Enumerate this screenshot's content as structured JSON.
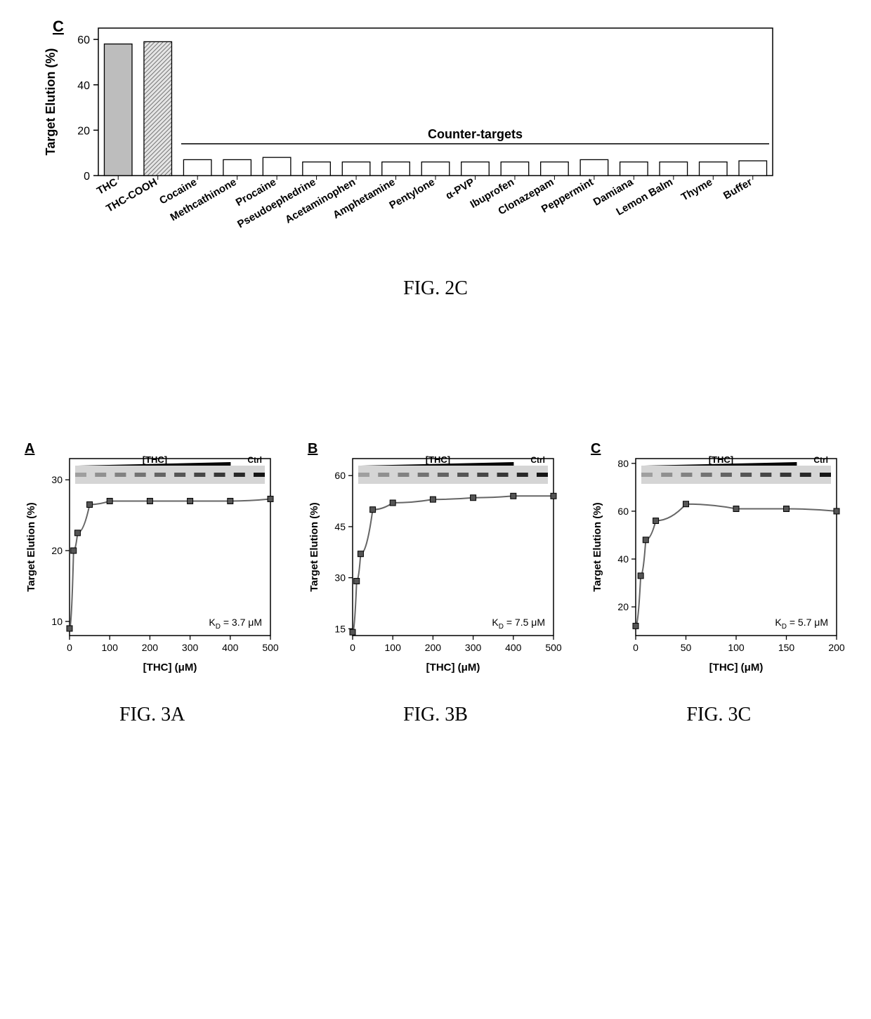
{
  "fig2c": {
    "type": "bar",
    "panel_label": "C",
    "ylabel": "Target Elution (%)",
    "ylim": [
      0,
      65
    ],
    "ytick_step": 20,
    "yticks": [
      0,
      20,
      40,
      60
    ],
    "counter_label": "Counter-targets",
    "categories": [
      "THC",
      "THC-COOH",
      "Cocaine",
      "Methcathinone",
      "Procaine",
      "Pseudoephedrine",
      "Acetaminophen",
      "Amphetamine",
      "Pentylone",
      "α-PVP",
      "Ibuprofen",
      "Clonazepam",
      "Peppermint",
      "Damiana",
      "Lemon Balm",
      "Thyme",
      "Buffer"
    ],
    "values": [
      58,
      59,
      7,
      7,
      8,
      6,
      6,
      6,
      6,
      6,
      6,
      6,
      7,
      6,
      6,
      6,
      6.5
    ],
    "bar_colors": [
      "#bdbdbd",
      "hatch",
      "#ffffff",
      "#ffffff",
      "#ffffff",
      "#ffffff",
      "#ffffff",
      "#ffffff",
      "#ffffff",
      "#ffffff",
      "#ffffff",
      "#ffffff",
      "#ffffff",
      "#ffffff",
      "#ffffff",
      "#ffffff",
      "#ffffff"
    ],
    "border_color": "#000000",
    "background_color": "#ffffff",
    "label_fontsize": 18,
    "tick_fontsize": 16,
    "cat_fontsize": 15,
    "bar_width": 0.7
  },
  "fig3a": {
    "panel_label": "A",
    "ylabel": "Target Elution (%)",
    "xlabel": "[THC] (μM)",
    "xlim": [
      0,
      500
    ],
    "xticks": [
      0,
      100,
      200,
      300,
      400,
      500
    ],
    "ylim": [
      8,
      33
    ],
    "yticks": [
      10,
      20,
      30
    ],
    "kd_label": "K",
    "kd_sub": "D",
    "kd_value": " = 3.7 μM",
    "points_x": [
      0,
      10,
      20,
      50,
      100,
      200,
      300,
      400,
      500
    ],
    "points_y": [
      9,
      20,
      22.5,
      26.5,
      27,
      27,
      27,
      27,
      27.3
    ],
    "inset_label": "[THC]",
    "inset_ctrl": "Ctrl"
  },
  "fig3b": {
    "panel_label": "B",
    "ylabel": "Target Elution (%)",
    "xlabel": "[THC] (μM)",
    "xlim": [
      0,
      500
    ],
    "xticks": [
      0,
      100,
      200,
      300,
      400,
      500
    ],
    "ylim": [
      13,
      65
    ],
    "yticks": [
      15,
      30,
      45,
      60
    ],
    "kd_label": "K",
    "kd_sub": "D",
    "kd_value": " = 7.5 μM",
    "points_x": [
      0,
      10,
      20,
      50,
      100,
      200,
      300,
      400,
      500
    ],
    "points_y": [
      14,
      29,
      37,
      50,
      52,
      53,
      53.5,
      54,
      54
    ],
    "inset_label": "[THC]",
    "inset_ctrl": "Ctrl"
  },
  "fig3c": {
    "panel_label": "C",
    "ylabel": "Target Elution (%)",
    "xlabel": "[THC] (μM)",
    "xlim": [
      0,
      200
    ],
    "xticks": [
      0,
      50,
      100,
      150,
      200
    ],
    "ylim": [
      8,
      82
    ],
    "yticks": [
      20,
      40,
      60,
      80
    ],
    "kd_label": "K",
    "kd_sub": "D",
    "kd_value": " = 5.7 μM",
    "points_x": [
      0,
      5,
      10,
      20,
      50,
      100,
      150,
      200
    ],
    "points_y": [
      12,
      33,
      48,
      56,
      63,
      61,
      61,
      60
    ],
    "inset_label": "[THC]",
    "inset_ctrl": "Ctrl"
  },
  "captions": {
    "fig2c": "FIG. 2C",
    "fig3a": "FIG. 3A",
    "fig3b": "FIG. 3B",
    "fig3c": "FIG. 3C"
  },
  "colors": {
    "axis": "#000000",
    "curve": "#666666",
    "marker": "#000000",
    "gel_bg": "#d5d5d5"
  }
}
